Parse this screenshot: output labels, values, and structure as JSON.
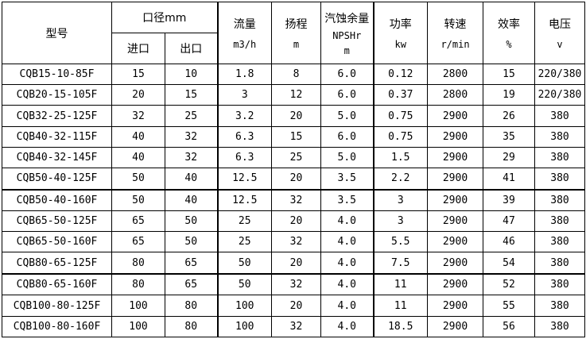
{
  "table": {
    "headers": {
      "model": "型号",
      "caliber": "口径mm",
      "inlet": "进口",
      "outlet": "出口",
      "flow": "流量",
      "flow_unit": "m3/h",
      "head": "扬程",
      "head_unit": "m",
      "npsh": "汽蚀余量",
      "npsh_sub": "NPSHr",
      "npsh_unit": "m",
      "power": "功率",
      "power_unit": "kw",
      "speed": "转速",
      "speed_unit": "r/min",
      "efficiency": "效率",
      "efficiency_unit": "%",
      "voltage": "电压",
      "voltage_unit": "v"
    },
    "column_keys": [
      "model",
      "inlet",
      "outlet",
      "flow",
      "head",
      "npsh",
      "power",
      "speed",
      "efficiency",
      "voltage"
    ],
    "thick_left_columns": [
      3,
      6
    ],
    "thick_border_after_rows": [
      6,
      10
    ],
    "rows": [
      [
        "CQB15-10-85F",
        "15",
        "10",
        "1.8",
        "8",
        "6.0",
        "0.12",
        "2800",
        "15",
        "220/380"
      ],
      [
        "CQB20-15-105F",
        "20",
        "15",
        "3",
        "12",
        "6.0",
        "0.37",
        "2800",
        "19",
        "220/380"
      ],
      [
        "CQB32-25-125F",
        "32",
        "25",
        "3.2",
        "20",
        "5.0",
        "0.75",
        "2900",
        "26",
        "380"
      ],
      [
        "CQB40-32-115F",
        "40",
        "32",
        "6.3",
        "15",
        "6.0",
        "0.75",
        "2900",
        "35",
        "380"
      ],
      [
        "CQB40-32-145F",
        "40",
        "32",
        "6.3",
        "25",
        "5.0",
        "1.5",
        "2900",
        "29",
        "380"
      ],
      [
        "CQB50-40-125F",
        "50",
        "40",
        "12.5",
        "20",
        "3.5",
        "2.2",
        "2900",
        "41",
        "380"
      ],
      [
        "CQB50-40-160F",
        "50",
        "40",
        "12.5",
        "32",
        "3.5",
        "3",
        "2900",
        "39",
        "380"
      ],
      [
        "CQB65-50-125F",
        "65",
        "50",
        "25",
        "20",
        "4.0",
        "3",
        "2900",
        "47",
        "380"
      ],
      [
        "CQB65-50-160F",
        "65",
        "50",
        "25",
        "32",
        "4.0",
        "5.5",
        "2900",
        "46",
        "380"
      ],
      [
        "CQB80-65-125F",
        "80",
        "65",
        "50",
        "20",
        "4.0",
        "7.5",
        "2900",
        "54",
        "380"
      ],
      [
        "CQB80-65-160F",
        "80",
        "65",
        "50",
        "32",
        "4.0",
        "11",
        "2900",
        "52",
        "380"
      ],
      [
        "CQB100-80-125F",
        "100",
        "80",
        "100",
        "20",
        "4.0",
        "11",
        "2900",
        "55",
        "380"
      ],
      [
        "CQB100-80-160F",
        "100",
        "80",
        "100",
        "32",
        "4.0",
        "18.5",
        "2900",
        "56",
        "380"
      ]
    ]
  }
}
